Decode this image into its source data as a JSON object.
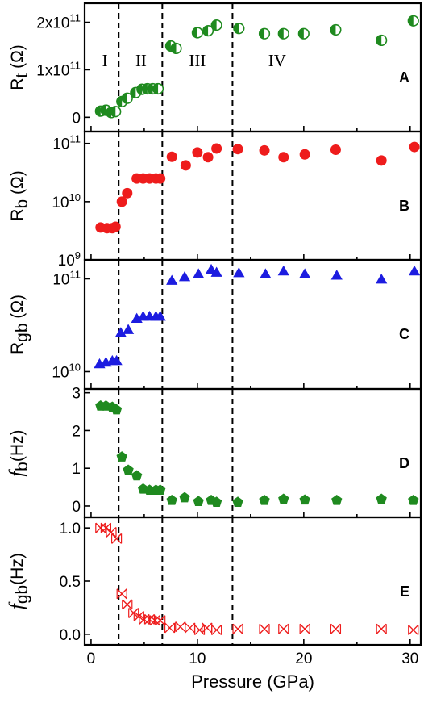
{
  "chart_data": [
    {
      "id": "A",
      "type": "scatter",
      "panel_label": "A",
      "ylabel_main": "R",
      "ylabel_sub": "t",
      "ylabel_unit": " (Ω)",
      "yscale": "linear",
      "ylim": [
        -30000000000,
        240000000000
      ],
      "yticks": [
        {
          "value": 0,
          "label": "0",
          "sup": ""
        },
        {
          "value": 100000000000,
          "label": "1x10",
          "sup": "11"
        },
        {
          "value": 200000000000,
          "label": "2x10",
          "sup": "11"
        }
      ],
      "marker": "half-circle",
      "color": "#1f8a1f",
      "regions": [
        "I",
        "II",
        "III",
        "IV"
      ],
      "x": [
        0.9,
        1.4,
        1.9,
        2.3,
        2.9,
        3.4,
        4.2,
        4.8,
        5.3,
        5.8,
        6.3,
        7.5,
        8.0,
        10.0,
        11.0,
        11.8,
        13.9,
        16.3,
        18.1,
        20.0,
        23.0,
        27.3,
        30.3
      ],
      "y": [
        13000000000,
        15000000000,
        10000000000,
        12000000000,
        33000000000,
        40000000000,
        52000000000,
        59000000000,
        60000000000,
        60000000000,
        60000000000,
        150000000000,
        145000000000,
        178000000000,
        182000000000,
        194000000000,
        187000000000,
        176000000000,
        176000000000,
        176000000000,
        184000000000,
        162000000000,
        203000000000
      ]
    },
    {
      "id": "B",
      "type": "scatter",
      "panel_label": "B",
      "ylabel_main": "R",
      "ylabel_sub": "b",
      "ylabel_unit": " (Ω)",
      "yscale": "log",
      "ylim": [
        1000000000,
        160000000000
      ],
      "yticks": [
        {
          "value": 1000000000,
          "label": "10",
          "sup": "9"
        },
        {
          "value": 10000000000,
          "label": "10",
          "sup": "10"
        },
        {
          "value": 100000000000,
          "label": "10",
          "sup": "11"
        }
      ],
      "marker": "circle",
      "color": "#ee1c1c",
      "x": [
        0.9,
        1.5,
        2.0,
        2.3,
        2.9,
        3.4,
        4.3,
        4.9,
        5.5,
        6.1,
        6.5,
        7.6,
        8.9,
        10.0,
        11.0,
        11.8,
        13.8,
        16.3,
        18.1,
        20.1,
        23.0,
        27.3,
        30.4
      ],
      "y": [
        3600000000,
        3500000000,
        3500000000,
        3700000000,
        10000000000,
        14000000000,
        25000000000,
        25000000000,
        25000000000,
        25000000000,
        25000000000,
        59000000000,
        42000000000,
        70000000000,
        58000000000,
        82000000000,
        80000000000,
        76000000000,
        58000000000,
        65000000000,
        78000000000,
        51000000000,
        87000000000
      ]
    },
    {
      "id": "C",
      "type": "scatter",
      "panel_label": "C",
      "ylabel_main": "R",
      "ylabel_sub": "gb",
      "ylabel_unit": " (Ω)",
      "yscale": "log",
      "ylim": [
        6500000000,
        160000000000
      ],
      "yticks": [
        {
          "value": 10000000000,
          "label": "10",
          "sup": "10"
        },
        {
          "value": 100000000000,
          "label": "10",
          "sup": "11"
        }
      ],
      "marker": "triangle",
      "color": "#1c1ce0",
      "x": [
        0.8,
        1.4,
        2.0,
        2.4,
        2.8,
        3.5,
        4.3,
        4.9,
        5.5,
        6.1,
        6.5,
        7.6,
        8.8,
        10.1,
        11.3,
        11.8,
        13.9,
        16.4,
        18.1,
        20.1,
        23.1,
        27.3,
        30.4
      ],
      "y": [
        12000000000,
        12500000000,
        13000000000,
        13000000000,
        26000000000,
        28000000000,
        37000000000,
        39000000000,
        39000000000,
        39000000000,
        39000000000,
        95000000000,
        104000000000,
        112000000000,
        125000000000,
        116000000000,
        115000000000,
        112000000000,
        120000000000,
        112000000000,
        108000000000,
        98000000000,
        120000000000
      ]
    },
    {
      "id": "D",
      "type": "scatter",
      "panel_label": "D",
      "ylabel_main": "f",
      "ylabel_sub": "b",
      "ylabel_unit": "(Hz)",
      "yscale": "linear",
      "ylim": [
        -0.3,
        3.1
      ],
      "yticks": [
        {
          "value": 0,
          "label": "0",
          "sup": ""
        },
        {
          "value": 1,
          "label": "1",
          "sup": ""
        },
        {
          "value": 2,
          "label": "2",
          "sup": ""
        },
        {
          "value": 3,
          "label": "3",
          "sup": ""
        }
      ],
      "marker": "pentagon",
      "color": "#1f8a1f",
      "x": [
        0.9,
        1.4,
        2.0,
        2.4,
        2.9,
        3.5,
        4.3,
        4.9,
        5.5,
        6.1,
        6.5,
        7.6,
        8.8,
        10.1,
        11.3,
        11.8,
        13.8,
        16.3,
        18.1,
        20.1,
        23.1,
        27.3,
        30.3
      ],
      "y": [
        2.65,
        2.65,
        2.62,
        2.55,
        1.3,
        0.95,
        0.8,
        0.45,
        0.42,
        0.42,
        0.42,
        0.15,
        0.22,
        0.12,
        0.15,
        0.1,
        0.1,
        0.15,
        0.18,
        0.16,
        0.15,
        0.18,
        0.15
      ]
    },
    {
      "id": "E",
      "type": "scatter",
      "panel_label": "E",
      "ylabel_main": "f",
      "ylabel_sub": "gb",
      "ylabel_unit": "(Hz)",
      "yscale": "linear",
      "ylim": [
        -0.1,
        1.1
      ],
      "yticks": [
        {
          "value": 0,
          "label": "0.0",
          "sup": ""
        },
        {
          "value": 0.5,
          "label": "0.5",
          "sup": ""
        },
        {
          "value": 1,
          "label": "1.0",
          "sup": ""
        }
      ],
      "marker": "x",
      "color": "#ee1c1c",
      "x": [
        0.9,
        1.4,
        1.9,
        2.4,
        2.9,
        3.4,
        4.0,
        4.5,
        5.0,
        5.5,
        6.0,
        6.5,
        7.4,
        8.4,
        9.3,
        10.2,
        10.9,
        11.8,
        13.8,
        16.3,
        18.1,
        20.1,
        23.0,
        27.3,
        30.3
      ],
      "y": [
        1.0,
        1.0,
        0.96,
        0.9,
        0.38,
        0.28,
        0.2,
        0.17,
        0.14,
        0.14,
        0.13,
        0.13,
        0.06,
        0.07,
        0.06,
        0.04,
        0.06,
        0.04,
        0.05,
        0.05,
        0.05,
        0.05,
        0.05,
        0.05,
        0.04
      ]
    }
  ],
  "x_axis": {
    "label": "Pressure (GPa)",
    "xlim": [
      -0.6,
      31.0
    ],
    "ticks": [
      0,
      10,
      20,
      30
    ],
    "tick_labels": [
      "0",
      "10",
      "20",
      "30"
    ],
    "minor_ticks": [
      5,
      15,
      25
    ]
  },
  "phase_boundaries": [
    2.6,
    6.7,
    13.3
  ],
  "region_labels": [
    {
      "label": "I",
      "x": 1.3
    },
    {
      "label": "II",
      "x": 4.7
    },
    {
      "label": "III",
      "x": 10.0
    },
    {
      "label": "IV",
      "x": 17.5
    }
  ]
}
